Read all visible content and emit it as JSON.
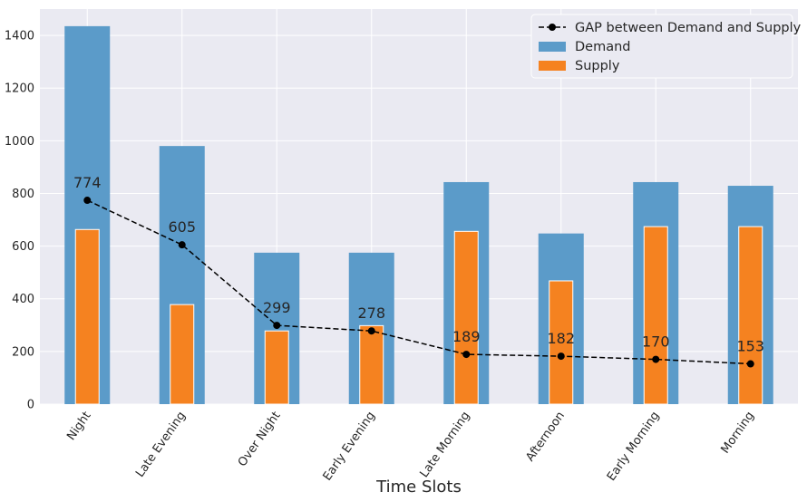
{
  "chart_data": {
    "type": "bar",
    "title": "",
    "xlabel": "Time Slots",
    "ylabel": "",
    "ylim": [
      0,
      1500
    ],
    "yticks": [
      0,
      200,
      400,
      600,
      800,
      1000,
      1200,
      1400
    ],
    "grid": true,
    "legend_position": "top-right",
    "categories": [
      "Night",
      "Late Evening",
      "Over Night",
      "Early Evening",
      "Late Morning",
      "Afternoon",
      "Early Morning",
      "Morning"
    ],
    "series": [
      {
        "name": "Demand",
        "kind": "bar",
        "color": "#5b9bc9",
        "values": [
          1435,
          980,
          575,
          575,
          843,
          648,
          843,
          829
        ]
      },
      {
        "name": "Supply",
        "kind": "bar",
        "color": "#f58220",
        "values": [
          663,
          378,
          278,
          298,
          656,
          468,
          674,
          674
        ]
      },
      {
        "name": "GAP between Demand and Supply",
        "kind": "line",
        "color": "#000000",
        "style": "dashed",
        "marker": "circle",
        "values": [
          774,
          605,
          299,
          278,
          189,
          182,
          170,
          153
        ]
      }
    ],
    "data_labels": [
      "774",
      "605",
      "299",
      "278",
      "189",
      "182",
      "170",
      "153"
    ],
    "background": "#eaeaf2"
  }
}
